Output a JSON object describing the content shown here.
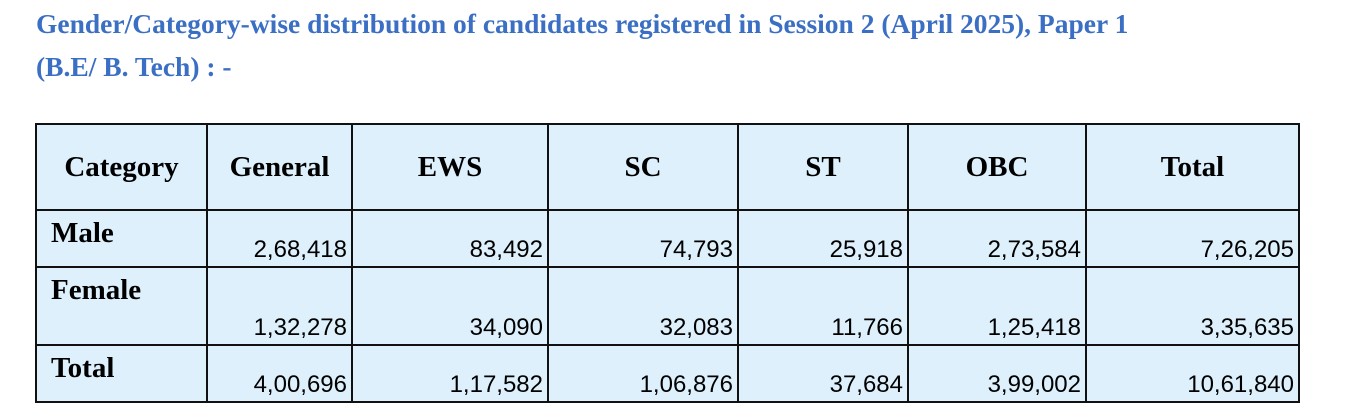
{
  "heading": {
    "line1": "Gender/Category-wise distribution of candidates registered in Session 2 (April 2025), Paper 1",
    "line2": "(B.E/ B. Tech) : -"
  },
  "table": {
    "headers": [
      "Category",
      "General",
      "EWS",
      "SC",
      "ST",
      "OBC",
      "Total"
    ],
    "rows": [
      {
        "label": "Male",
        "values": [
          "2,68,418",
          "83,492",
          "74,793",
          "25,918",
          "2,73,584",
          "7,26,205"
        ]
      },
      {
        "label": "Female",
        "values": [
          "1,32,278",
          "34,090",
          "32,083",
          "11,766",
          "1,25,418",
          "3,35,635"
        ]
      },
      {
        "label": "Total",
        "values": [
          "4,00,696",
          "1,17,582",
          "1,06,876",
          "37,684",
          "3,99,002",
          "10,61,840"
        ]
      }
    ]
  },
  "colors": {
    "heading": "#3a6fc4",
    "cell_background": "#ddf0fb",
    "border": "#111111"
  }
}
